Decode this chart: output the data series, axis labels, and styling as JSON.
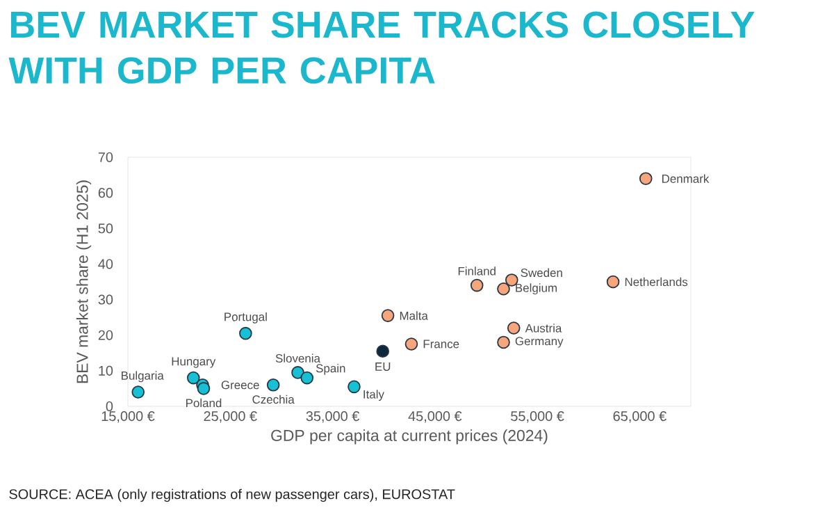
{
  "chart_data": {
    "type": "scatter",
    "title": "BEV MARKET SHARE TRACKS CLOSELY WITH GDP PER CAPITA",
    "xlabel": "GDP per capita at current prices (2024)",
    "ylabel": "BEV market share (H1 2025)",
    "xlim": [
      15000,
      70000
    ],
    "ylim": [
      0,
      70
    ],
    "xticks": [
      {
        "value": 15000,
        "label": "15,000 €"
      },
      {
        "value": 25000,
        "label": "25,000 €"
      },
      {
        "value": 35000,
        "label": "35,000 €"
      },
      {
        "value": 45000,
        "label": "45,000 €"
      },
      {
        "value": 55000,
        "label": "55,000 €"
      },
      {
        "value": 65000,
        "label": "65,000 €"
      }
    ],
    "yticks": [
      0,
      10,
      20,
      30,
      40,
      50,
      60,
      70
    ],
    "grid": false,
    "marker": "circle",
    "series": [
      {
        "color": "#17c0d4",
        "x": [
          16000,
          21400,
          22300,
          22400,
          26500,
          29200,
          31600,
          32500,
          37100
        ],
        "values": [
          4,
          8,
          6,
          5,
          20.5,
          6,
          9.5,
          8,
          5.5
        ]
      },
      {
        "color": "#0d2a3c",
        "x": [
          39900
        ],
        "values": [
          15.5
        ]
      },
      {
        "color": "#f7a57a",
        "x": [
          40400,
          42700,
          49100,
          52500,
          51700,
          52700,
          51700,
          62400,
          65600
        ],
        "values": [
          25.5,
          17.5,
          34,
          35.5,
          33,
          22,
          18,
          35,
          64
        ]
      }
    ],
    "annotations": [
      {
        "text": "Bulgaria",
        "x": 16000,
        "y": 4
      },
      {
        "text": "Hungary",
        "x": 21400,
        "y": 8
      },
      {
        "text": "Greece",
        "x": 22300,
        "y": 6
      },
      {
        "text": "Poland",
        "x": 22400,
        "y": 5
      },
      {
        "text": "Portugal",
        "x": 26500,
        "y": 20.5
      },
      {
        "text": "Czechia",
        "x": 29200,
        "y": 6
      },
      {
        "text": "Slovenia",
        "x": 31600,
        "y": 9.5
      },
      {
        "text": "Spain",
        "x": 32500,
        "y": 8
      },
      {
        "text": "Italy",
        "x": 37100,
        "y": 5.5
      },
      {
        "text": "EU",
        "x": 39900,
        "y": 15.5
      },
      {
        "text": "Malta",
        "x": 40400,
        "y": 25.5
      },
      {
        "text": "France",
        "x": 42700,
        "y": 17.5
      },
      {
        "text": "Finland",
        "x": 49100,
        "y": 34
      },
      {
        "text": "Sweden",
        "x": 52500,
        "y": 35.5
      },
      {
        "text": "Belgium",
        "x": 51700,
        "y": 33
      },
      {
        "text": "Austria",
        "x": 52700,
        "y": 22
      },
      {
        "text": "Germany",
        "x": 51700,
        "y": 18
      },
      {
        "text": "Netherlands",
        "x": 62400,
        "y": 35
      },
      {
        "text": "Denmark",
        "x": 65600,
        "y": 64
      },
      "SOURCE: ACEA (only registrations of new passenger cars), EUROSTAT"
    ]
  }
}
